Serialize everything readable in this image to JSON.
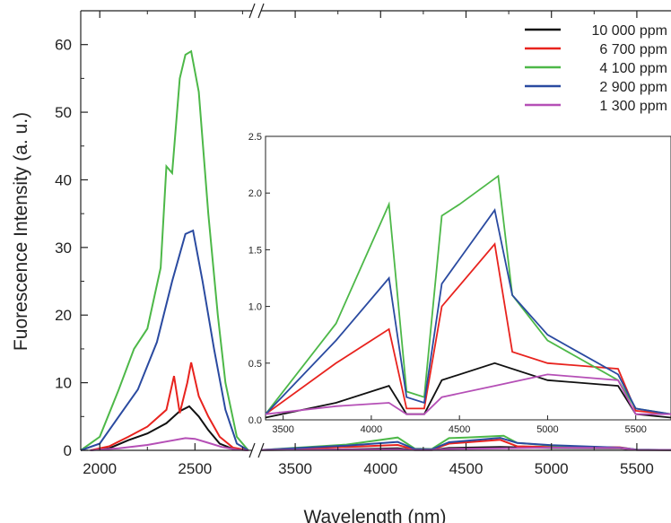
{
  "chart_data": {
    "type": "line",
    "xlabel": "Wavelength (nm)",
    "ylabel": "Fuorescence Intensity (a. u.)",
    "x_axis": "broken",
    "x_segments": [
      {
        "xlim": [
          1900,
          2800
        ],
        "ticks": [
          2000,
          2500
        ]
      },
      {
        "xlim": [
          3300,
          5700
        ],
        "ticks": [
          3500,
          4000,
          4500,
          5000,
          5500
        ]
      }
    ],
    "ylim": [
      0,
      65
    ],
    "yticks": [
      0,
      10,
      20,
      30,
      40,
      50,
      60
    ],
    "grid": false,
    "legend": {
      "placement": "top-right",
      "entries": [
        "10 000 ppm",
        "6 700 ppm",
        "4 100 ppm",
        "2 900 ppm",
        "1 300 ppm"
      ]
    },
    "series": [
      {
        "name": "10 000 ppm",
        "color": "#111111",
        "points": [
          [
            1950,
            0
          ],
          [
            2050,
            0.3
          ],
          [
            2150,
            1.5
          ],
          [
            2250,
            2.5
          ],
          [
            2350,
            4
          ],
          [
            2420,
            5.8
          ],
          [
            2470,
            6.5
          ],
          [
            2520,
            5
          ],
          [
            2570,
            3
          ],
          [
            2630,
            1
          ],
          [
            2700,
            0.2
          ],
          [
            2780,
            0
          ],
          [
            3300,
            0.02
          ],
          [
            3800,
            0.15
          ],
          [
            4100,
            0.3
          ],
          [
            4200,
            0.05
          ],
          [
            4300,
            0.05
          ],
          [
            4400,
            0.35
          ],
          [
            4700,
            0.5
          ],
          [
            5000,
            0.35
          ],
          [
            5400,
            0.3
          ],
          [
            5500,
            0.05
          ],
          [
            5700,
            0.02
          ]
        ]
      },
      {
        "name": "6 700 ppm",
        "color": "#e8231e",
        "points": [
          [
            1950,
            0
          ],
          [
            2050,
            0.6
          ],
          [
            2150,
            2
          ],
          [
            2250,
            3.5
          ],
          [
            2350,
            6
          ],
          [
            2390,
            11
          ],
          [
            2420,
            5.5
          ],
          [
            2460,
            10
          ],
          [
            2480,
            13
          ],
          [
            2520,
            8
          ],
          [
            2570,
            5
          ],
          [
            2630,
            2
          ],
          [
            2700,
            0.4
          ],
          [
            2780,
            0
          ],
          [
            3300,
            0.05
          ],
          [
            3800,
            0.5
          ],
          [
            4100,
            0.8
          ],
          [
            4200,
            0.1
          ],
          [
            4300,
            0.1
          ],
          [
            4400,
            1
          ],
          [
            4700,
            1.55
          ],
          [
            4800,
            0.6
          ],
          [
            5000,
            0.5
          ],
          [
            5400,
            0.45
          ],
          [
            5500,
            0.08
          ],
          [
            5700,
            0.05
          ]
        ]
      },
      {
        "name": "4 100 ppm",
        "color": "#4db848",
        "points": [
          [
            1900,
            0
          ],
          [
            2000,
            2
          ],
          [
            2100,
            9
          ],
          [
            2180,
            15
          ],
          [
            2250,
            18
          ],
          [
            2320,
            27
          ],
          [
            2350,
            42
          ],
          [
            2380,
            41
          ],
          [
            2420,
            55
          ],
          [
            2450,
            58.5
          ],
          [
            2480,
            59
          ],
          [
            2520,
            53
          ],
          [
            2570,
            35
          ],
          [
            2620,
            20
          ],
          [
            2660,
            10
          ],
          [
            2720,
            2
          ],
          [
            2780,
            0
          ],
          [
            3300,
            0.05
          ],
          [
            3800,
            0.85
          ],
          [
            4100,
            1.9
          ],
          [
            4200,
            0.25
          ],
          [
            4300,
            0.2
          ],
          [
            4400,
            1.8
          ],
          [
            4500,
            1.9
          ],
          [
            4720,
            2.15
          ],
          [
            4800,
            1.1
          ],
          [
            5000,
            0.7
          ],
          [
            5400,
            0.35
          ],
          [
            5500,
            0.1
          ],
          [
            5700,
            0.05
          ]
        ]
      },
      {
        "name": "2 900 ppm",
        "color": "#2a4aa0",
        "points": [
          [
            1900,
            0
          ],
          [
            2000,
            1
          ],
          [
            2100,
            5
          ],
          [
            2200,
            9
          ],
          [
            2300,
            16
          ],
          [
            2380,
            25
          ],
          [
            2450,
            32
          ],
          [
            2490,
            32.5
          ],
          [
            2540,
            25
          ],
          [
            2600,
            15
          ],
          [
            2660,
            6
          ],
          [
            2720,
            1
          ],
          [
            2780,
            0
          ],
          [
            3300,
            0.05
          ],
          [
            3800,
            0.7
          ],
          [
            4100,
            1.25
          ],
          [
            4200,
            0.2
          ],
          [
            4300,
            0.15
          ],
          [
            4400,
            1.2
          ],
          [
            4700,
            1.85
          ],
          [
            4800,
            1.1
          ],
          [
            5000,
            0.75
          ],
          [
            5400,
            0.4
          ],
          [
            5500,
            0.1
          ],
          [
            5700,
            0.05
          ]
        ]
      },
      {
        "name": "1 300 ppm",
        "color": "#b54fb6",
        "points": [
          [
            1950,
            0
          ],
          [
            2100,
            0.3
          ],
          [
            2250,
            0.8
          ],
          [
            2350,
            1.3
          ],
          [
            2450,
            1.8
          ],
          [
            2500,
            1.7
          ],
          [
            2560,
            1.2
          ],
          [
            2640,
            0.5
          ],
          [
            2720,
            0.1
          ],
          [
            2780,
            0
          ],
          [
            3300,
            0.05
          ],
          [
            3800,
            0.12
          ],
          [
            4100,
            0.15
          ],
          [
            4200,
            0.05
          ],
          [
            4300,
            0.05
          ],
          [
            4400,
            0.2
          ],
          [
            4700,
            0.3
          ],
          [
            5000,
            0.4
          ],
          [
            5400,
            0.35
          ],
          [
            5500,
            0.05
          ],
          [
            5700,
            0.05
          ]
        ]
      }
    ],
    "inset": {
      "xlim": [
        3400,
        5700
      ],
      "xticks": [
        3500,
        4000,
        4500,
        5000,
        5500
      ],
      "ylim": [
        0,
        2.5
      ],
      "yticks": [
        "0.0",
        "0.5",
        "1.0",
        "1.5",
        "2.0",
        "2.5"
      ]
    }
  }
}
